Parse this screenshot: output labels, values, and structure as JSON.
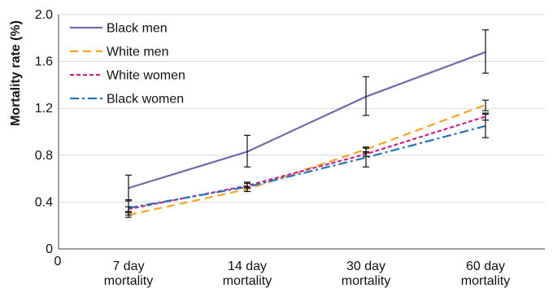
{
  "chart_data": {
    "type": "line",
    "title": "",
    "xlabel": "",
    "ylabel": "Mortality rate (%)",
    "ylim": [
      0,
      2.0
    ],
    "yticks": [
      "0",
      "0.4",
      "0.8",
      "1.2",
      "1.6",
      "2.0"
    ],
    "x_origin_label": "0",
    "grid": "horizontal",
    "legend_position": "top-left",
    "categories": [
      [
        "7 day",
        "mortality"
      ],
      [
        "14 day",
        "mortality"
      ],
      [
        "30 day",
        "mortality"
      ],
      [
        "60 day",
        "mortality"
      ]
    ],
    "series": [
      {
        "name": "Black men",
        "color": "#7567ad",
        "dash": "solid",
        "values": [
          0.52,
          0.83,
          1.3,
          1.68
        ],
        "error_low": [
          0.41,
          0.7,
          1.14,
          1.5
        ],
        "error_high": [
          0.63,
          0.97,
          1.47,
          1.87
        ]
      },
      {
        "name": "White men",
        "color": "#f5a623",
        "dash": "dashed",
        "values": [
          0.29,
          0.51,
          0.85,
          1.23
        ],
        "error_low": [
          0.27,
          0.49,
          0.82,
          1.18
        ],
        "error_high": [
          0.31,
          0.53,
          0.87,
          1.27
        ]
      },
      {
        "name": "White women",
        "color": "#cc2288",
        "dash": "dotted",
        "values": [
          0.34,
          0.54,
          0.81,
          1.13
        ],
        "error_low": [
          0.32,
          0.52,
          0.79,
          1.1
        ],
        "error_high": [
          0.36,
          0.56,
          0.83,
          1.16
        ]
      },
      {
        "name": "Black women",
        "color": "#2773b8",
        "dash": "dashdot",
        "values": [
          0.35,
          0.53,
          0.78,
          1.05
        ],
        "error_low": [
          0.29,
          0.49,
          0.7,
          0.95
        ],
        "error_high": [
          0.42,
          0.57,
          0.86,
          1.15
        ]
      }
    ]
  }
}
